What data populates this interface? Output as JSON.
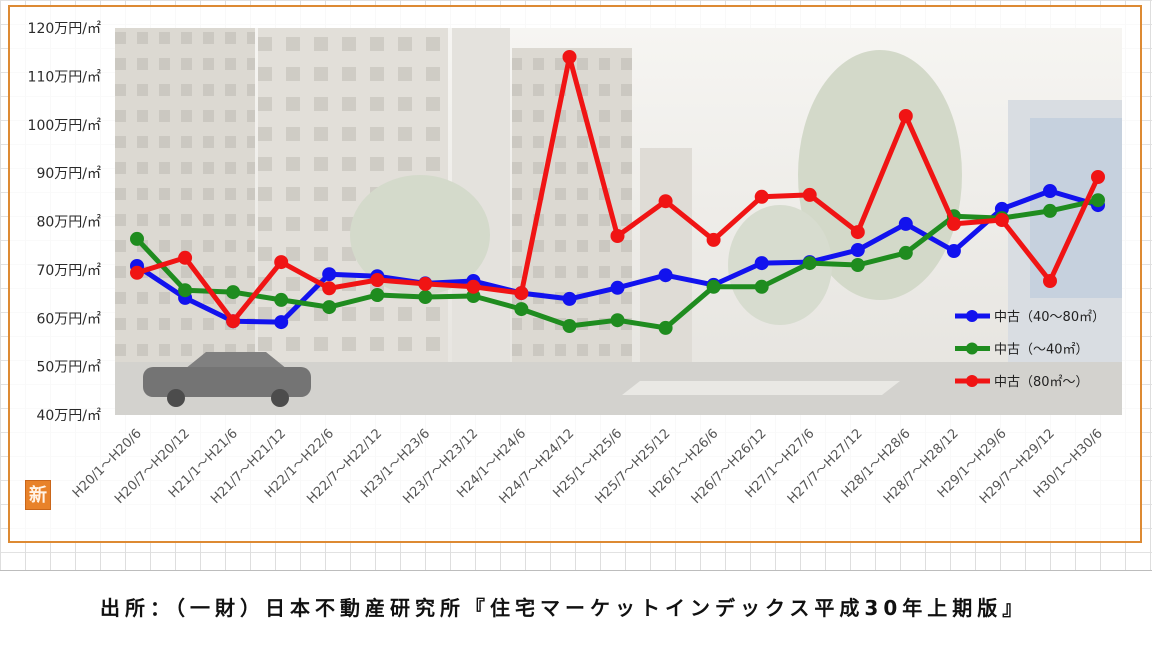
{
  "chart_data": {
    "type": "line",
    "ylim": [
      40,
      120
    ],
    "y_ticks": [
      120,
      110,
      100,
      90,
      80,
      70,
      60,
      50,
      40
    ],
    "y_tick_labels": [
      "120万円/㎡",
      "110万円/㎡",
      "100万円/㎡",
      "90万円/㎡",
      "80万円/㎡",
      "70万円/㎡",
      "60万円/㎡",
      "50万円/㎡",
      "40万円/㎡"
    ],
    "grid": false,
    "legend": "right",
    "categories": [
      "H20/1～H20/6",
      "H20/7～H20/12",
      "H21/1～H21/6",
      "H21/7～H21/12",
      "H22/1～H22/6",
      "H22/7～H22/12",
      "H23/1～H23/6",
      "H23/7～H23/12",
      "H24/1～H24/6",
      "H24/7～H24/12",
      "H25/1～H25/6",
      "H25/7～H25/12",
      "H26/1～H26/6",
      "H26/7～H26/12",
      "H27/1～H27/6",
      "H27/7～H27/12",
      "H28/1～H28/6",
      "H28/7～H28/12",
      "H29/1～H29/6",
      "H29/7～H29/12",
      "H30/1～H30/6"
    ],
    "series": [
      {
        "name": "中古（40～80㎡）",
        "color": "#1212ee",
        "values": [
          70.8,
          64.2,
          59.4,
          59.2,
          69.1,
          68.7,
          67.2,
          67.7,
          65.2,
          64.0,
          66.3,
          68.9,
          66.9,
          71.4,
          71.6,
          74.1,
          79.5,
          73.9,
          82.6,
          86.3,
          83.4
        ]
      },
      {
        "name": "中古（～40㎡）",
        "color": "#1f8c1f",
        "values": [
          76.4,
          65.8,
          65.4,
          63.8,
          62.3,
          64.8,
          64.4,
          64.6,
          61.9,
          58.4,
          59.6,
          58.0,
          66.5,
          66.5,
          71.4,
          71.0,
          73.5,
          81.1,
          80.7,
          82.2,
          84.4
        ]
      },
      {
        "name": "中古（80㎡～）",
        "color": "#f01414",
        "values": [
          69.4,
          72.5,
          59.4,
          71.6,
          66.2,
          67.9,
          67.1,
          66.5,
          65.2,
          114.0,
          77.0,
          84.2,
          76.2,
          85.1,
          85.5,
          77.8,
          101.8,
          79.5,
          80.3,
          67.7,
          89.2
        ]
      }
    ]
  },
  "logo_text": "新",
  "source": "出所：（一財）日本不動産研究所『住宅マーケットインデックス平成30年上期版』"
}
